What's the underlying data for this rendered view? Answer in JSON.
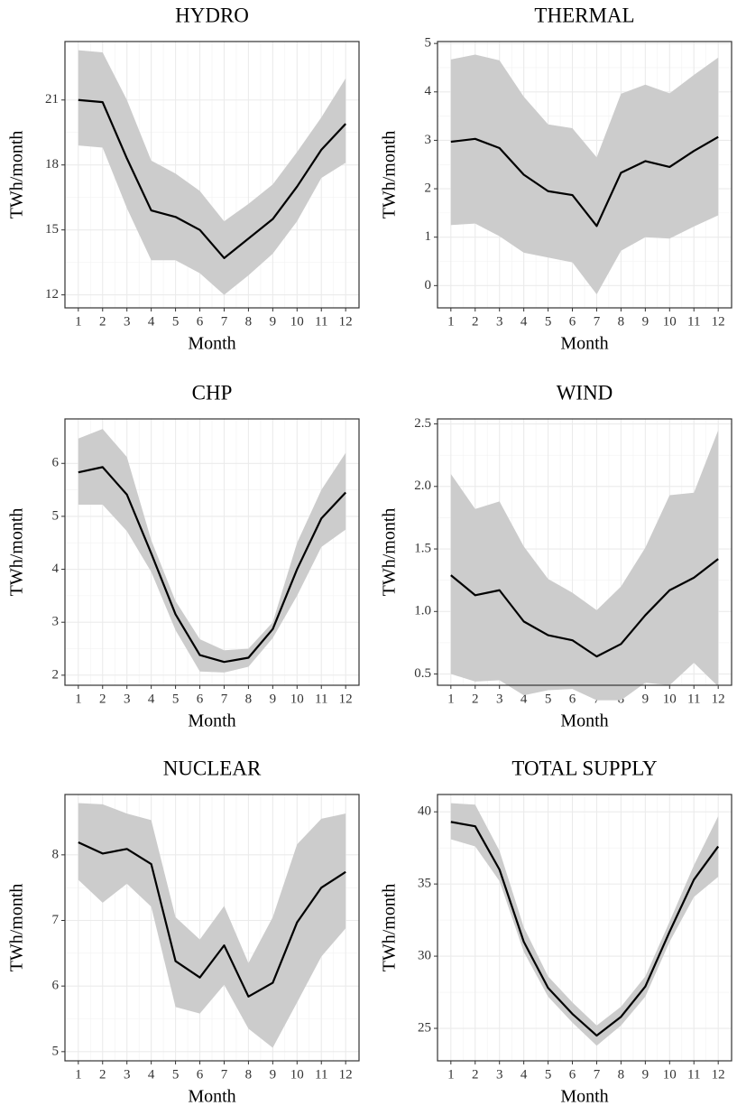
{
  "chart_data": [
    {
      "type": "line",
      "title": "HYDRO",
      "xlabel": "Month",
      "ylabel": "TWh/month",
      "x": [
        1,
        2,
        3,
        4,
        5,
        6,
        7,
        8,
        9,
        10,
        11,
        12
      ],
      "values": [
        21.0,
        20.9,
        18.3,
        15.9,
        15.6,
        15.0,
        13.7,
        14.6,
        15.5,
        17.0,
        18.7,
        19.9
      ],
      "upper": [
        23.3,
        23.2,
        21.0,
        18.2,
        17.6,
        16.8,
        15.4,
        16.2,
        17.1,
        18.6,
        20.2,
        22.0
      ],
      "lower": [
        18.9,
        18.8,
        16.0,
        13.6,
        13.6,
        13.0,
        12.0,
        12.9,
        13.9,
        15.4,
        17.4,
        18.1
      ],
      "color": "#000000",
      "band_color": "#cccccc",
      "xlim": [
        0.45,
        12.55
      ],
      "xticks": [
        1,
        2,
        3,
        4,
        5,
        6,
        7,
        8,
        9,
        10,
        11,
        12
      ],
      "ylim": [
        11.4,
        23.7
      ],
      "yticks": [
        12,
        15,
        18,
        21
      ],
      "grid": true
    },
    {
      "type": "line",
      "title": "THERMAL",
      "xlabel": "Month",
      "ylabel": "TWh/month",
      "x": [
        1,
        2,
        3,
        4,
        5,
        6,
        7,
        8,
        9,
        10,
        11,
        12
      ],
      "values": [
        2.97,
        3.03,
        2.84,
        2.29,
        1.95,
        1.87,
        1.23,
        2.33,
        2.57,
        2.45,
        2.78,
        3.07
      ],
      "upper": [
        4.67,
        4.77,
        4.65,
        3.9,
        3.33,
        3.25,
        2.65,
        3.96,
        4.15,
        3.97,
        4.35,
        4.71
      ],
      "lower": [
        1.25,
        1.28,
        1.02,
        0.68,
        0.58,
        0.48,
        -0.18,
        0.72,
        1.0,
        0.97,
        1.22,
        1.45
      ],
      "color": "#000000",
      "band_color": "#cccccc",
      "xlim": [
        0.45,
        12.55
      ],
      "xticks": [
        1,
        2,
        3,
        4,
        5,
        6,
        7,
        8,
        9,
        10,
        11,
        12
      ],
      "ylim": [
        -0.46,
        5.04
      ],
      "yticks": [
        0,
        1,
        2,
        3,
        4,
        5
      ],
      "grid": true
    },
    {
      "type": "line",
      "title": "CHP",
      "xlabel": "Month",
      "ylabel": "TWh/month",
      "x": [
        1,
        2,
        3,
        4,
        5,
        6,
        7,
        8,
        9,
        10,
        11,
        12
      ],
      "values": [
        5.83,
        5.93,
        5.41,
        4.3,
        3.15,
        2.38,
        2.25,
        2.33,
        2.87,
        4.0,
        4.96,
        5.45
      ],
      "upper": [
        6.47,
        6.65,
        6.12,
        4.55,
        3.4,
        2.68,
        2.47,
        2.5,
        3.0,
        4.5,
        5.5,
        6.2
      ],
      "lower": [
        5.22,
        5.22,
        4.72,
        3.95,
        2.85,
        2.07,
        2.05,
        2.16,
        2.7,
        3.5,
        4.42,
        4.75
      ],
      "color": "#000000",
      "band_color": "#cccccc",
      "xlim": [
        0.45,
        12.55
      ],
      "xticks": [
        1,
        2,
        3,
        4,
        5,
        6,
        7,
        8,
        9,
        10,
        11,
        12
      ],
      "ylim": [
        1.81,
        6.84
      ],
      "yticks": [
        2,
        3,
        4,
        5,
        6
      ],
      "grid": true
    },
    {
      "type": "line",
      "title": "WIND",
      "xlabel": "Month",
      "ylabel": "TWh/month",
      "x": [
        1,
        2,
        3,
        4,
        5,
        6,
        7,
        8,
        9,
        10,
        11,
        12
      ],
      "values": [
        1.29,
        1.13,
        1.17,
        0.92,
        0.81,
        0.77,
        0.64,
        0.74,
        0.97,
        1.17,
        1.27,
        1.42
      ],
      "upper": [
        2.1,
        1.82,
        1.88,
        1.52,
        1.26,
        1.15,
        1.01,
        1.2,
        1.51,
        1.93,
        1.95,
        2.45
      ],
      "lower": [
        0.5,
        0.44,
        0.45,
        0.33,
        0.37,
        0.38,
        0.29,
        0.29,
        0.43,
        0.41,
        0.59,
        0.4
      ],
      "color": "#000000",
      "band_color": "#cccccc",
      "xlim": [
        0.45,
        12.55
      ],
      "xticks": [
        1,
        2,
        3,
        4,
        5,
        6,
        7,
        8,
        9,
        10,
        11,
        12
      ],
      "ylim": [
        0.41,
        2.54
      ],
      "yticks": [
        {
          "value": 0.5,
          "label": "0.5"
        },
        {
          "value": 1,
          "label": "1.0"
        },
        {
          "value": 1.5,
          "label": "1.5"
        },
        {
          "value": 2,
          "label": "2.0"
        },
        {
          "value": 2.5,
          "label": "2.5"
        }
      ],
      "grid": true
    },
    {
      "type": "line",
      "title": "NUCLEAR",
      "xlabel": "Month",
      "ylabel": "TWh/month",
      "x": [
        1,
        2,
        3,
        4,
        5,
        6,
        7,
        8,
        9,
        10,
        11,
        12
      ],
      "values": [
        8.19,
        8.02,
        8.09,
        7.86,
        6.38,
        6.13,
        6.62,
        5.84,
        6.05,
        6.97,
        7.5,
        7.74
      ],
      "upper": [
        8.79,
        8.77,
        8.63,
        8.53,
        7.05,
        6.71,
        7.22,
        6.35,
        7.05,
        8.16,
        8.55,
        8.63
      ],
      "lower": [
        7.62,
        7.27,
        7.56,
        7.21,
        5.68,
        5.58,
        6.02,
        5.35,
        5.06,
        5.75,
        6.45,
        6.88
      ],
      "color": "#000000",
      "band_color": "#cccccc",
      "xlim": [
        0.45,
        12.55
      ],
      "xticks": [
        1,
        2,
        3,
        4,
        5,
        6,
        7,
        8,
        9,
        10,
        11,
        12
      ],
      "ylim": [
        4.86,
        8.92
      ],
      "yticks": [
        5,
        6,
        7,
        8
      ],
      "grid": true
    },
    {
      "type": "line",
      "title": "TOTAL SUPPLY",
      "xlabel": "Month",
      "ylabel": "TWh/month",
      "x": [
        1,
        2,
        3,
        4,
        5,
        6,
        7,
        8,
        9,
        10,
        11,
        12
      ],
      "values": [
        39.3,
        39.0,
        36.0,
        31.0,
        27.8,
        26.0,
        24.5,
        25.8,
        27.9,
        31.7,
        35.3,
        37.6
      ],
      "upper": [
        40.6,
        40.5,
        37.3,
        32.0,
        28.6,
        26.8,
        25.2,
        26.5,
        28.6,
        32.4,
        36.3,
        39.7
      ],
      "lower": [
        38.1,
        37.6,
        35.2,
        30.3,
        27.2,
        25.4,
        23.8,
        25.2,
        27.2,
        31.0,
        34.1,
        35.5
      ],
      "color": "#000000",
      "band_color": "#cccccc",
      "xlim": [
        0.45,
        12.55
      ],
      "xticks": [
        1,
        2,
        3,
        4,
        5,
        6,
        7,
        8,
        9,
        10,
        11,
        12
      ],
      "ylim": [
        22.75,
        41.2
      ],
      "yticks": [
        25,
        30,
        35,
        40
      ],
      "grid": true
    }
  ]
}
